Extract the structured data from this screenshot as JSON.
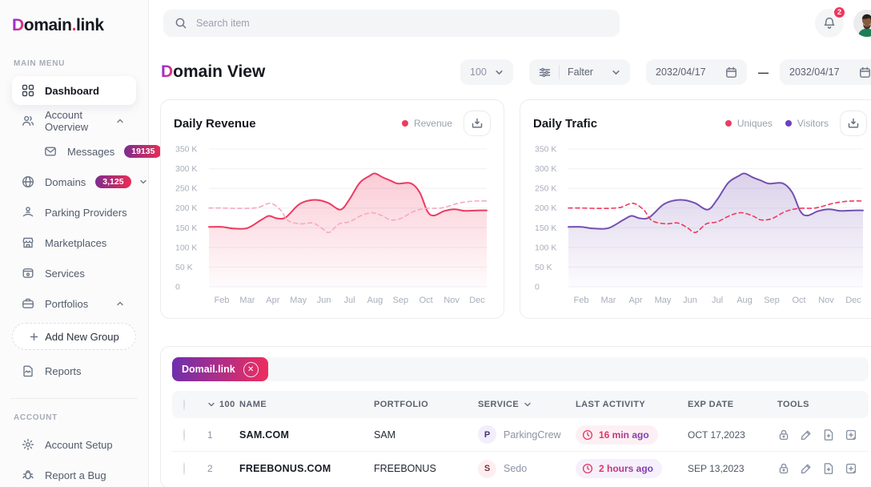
{
  "colors": {
    "accent_red": "#ee3a60",
    "accent_purple": "#7450b0",
    "dashed_pink": "#f6a9c0",
    "badge_gradient": [
      "#7b2d8e",
      "#ee2b52"
    ],
    "chip_gradient": [
      "#6d2fae",
      "#ef2d5e"
    ]
  },
  "sidebar": {
    "logo": {
      "prefix": "D",
      "mid": "omain",
      "dot": ".",
      "suffix": "link"
    },
    "main_menu_label": "MAIN MENU",
    "account_label": "ACCOUNT",
    "items": {
      "dashboard": "Dashboard",
      "account_overview": "Account Overview",
      "messages": "Messages",
      "messages_badge": "19135",
      "domains": "Domains",
      "domains_badge": "3,125",
      "parking_providers": "Parking Providers",
      "marketplaces": "Marketplaces",
      "services": "Services",
      "portfolios": "Portfolios",
      "add_new_group": "Add New Group",
      "reports": "Reports",
      "account_setup": "Account Setup",
      "report_a_bug": "Report a Bug"
    }
  },
  "topbar": {
    "search_placeholder": "Search item",
    "notification_count": "2"
  },
  "header": {
    "title_prefix": "D",
    "title_rest": "omain View",
    "page_size": "100",
    "filter_label": "Falter",
    "date_from": "2032/04/17",
    "date_to": "2032/04/17",
    "dash": "—"
  },
  "chart_data": [
    {
      "type": "line",
      "title": "Daily Revenue",
      "unit": "K",
      "ylim": [
        0,
        350
      ],
      "y_ticks": [
        "350 K",
        "300 K",
        "250 K",
        "200 K",
        "150 K",
        "100 K",
        "50 K",
        "0"
      ],
      "categories": [
        "Feb",
        "Mar",
        "Apr",
        "May",
        "Jun",
        "Jul",
        "Aug",
        "Sep",
        "Oct",
        "Nov",
        "Dec"
      ],
      "legend": [
        {
          "label": "Revenue",
          "color": "#ee3a60"
        }
      ],
      "series": [
        {
          "name": "Revenue",
          "style": "area",
          "color": "#ee3a60",
          "points": [
            [
              0,
              152
            ],
            [
              0.45,
              148
            ],
            [
              1,
              149
            ],
            [
              1.55,
              170
            ],
            [
              1.85,
              180
            ],
            [
              2.15,
              174
            ],
            [
              2.5,
              176
            ],
            [
              3,
              208
            ],
            [
              3.4,
              219
            ],
            [
              3.8,
              220
            ],
            [
              4.2,
              212
            ],
            [
              4.65,
              196
            ],
            [
              5,
              222
            ],
            [
              5.4,
              264
            ],
            [
              5.8,
              282
            ],
            [
              6,
              288
            ],
            [
              6.3,
              278
            ],
            [
              6.6,
              270
            ],
            [
              6.9,
              262
            ],
            [
              7.4,
              263
            ],
            [
              7.75,
              240
            ],
            [
              8.05,
              192
            ],
            [
              8.3,
              181
            ],
            [
              8.7,
              192
            ],
            [
              9.1,
              197
            ],
            [
              9.5,
              193
            ],
            [
              10,
              194
            ]
          ]
        },
        {
          "name": "Revenue trend",
          "style": "dashed",
          "color": "#f6a9c0",
          "points": [
            [
              0,
              200
            ],
            [
              0.7,
              199
            ],
            [
              1.4,
              201
            ],
            [
              1.9,
              212
            ],
            [
              2.3,
              195
            ],
            [
              2.6,
              168
            ],
            [
              3.1,
              160
            ],
            [
              3.55,
              162
            ],
            [
              3.9,
              150
            ],
            [
              4.2,
              138
            ],
            [
              4.6,
              160
            ],
            [
              5,
              165
            ],
            [
              5.5,
              182
            ],
            [
              5.9,
              188
            ],
            [
              6.3,
              180
            ],
            [
              6.6,
              170
            ],
            [
              7,
              173
            ],
            [
              7.5,
              191
            ],
            [
              8,
              199
            ],
            [
              8.6,
              200
            ],
            [
              9.2,
              211
            ],
            [
              9.6,
              216
            ],
            [
              10,
              218
            ]
          ]
        }
      ]
    },
    {
      "type": "line",
      "title": "Daily Trafic",
      "unit": "K",
      "ylim": [
        0,
        350
      ],
      "y_ticks": [
        "350 K",
        "300 K",
        "250 K",
        "200 K",
        "150 K",
        "100 K",
        "50 K",
        "0"
      ],
      "categories": [
        "Feb",
        "Mar",
        "Apr",
        "May",
        "Jun",
        "Jul",
        "Aug",
        "Sep",
        "Oct",
        "Nov",
        "Dec"
      ],
      "legend": [
        {
          "label": "Uniques",
          "color": "#ee3a60"
        },
        {
          "label": "Visitors",
          "color": "#6d3fc0"
        }
      ],
      "series": [
        {
          "name": "Visitors",
          "style": "area",
          "color": "#7450b0",
          "points": [
            [
              0,
              152
            ],
            [
              0.45,
              148
            ],
            [
              1,
              149
            ],
            [
              1.55,
              170
            ],
            [
              1.85,
              180
            ],
            [
              2.15,
              174
            ],
            [
              2.5,
              176
            ],
            [
              3,
              208
            ],
            [
              3.4,
              219
            ],
            [
              3.8,
              220
            ],
            [
              4.2,
              212
            ],
            [
              4.65,
              196
            ],
            [
              5,
              222
            ],
            [
              5.4,
              264
            ],
            [
              5.8,
              282
            ],
            [
              6,
              288
            ],
            [
              6.3,
              278
            ],
            [
              6.6,
              270
            ],
            [
              6.9,
              262
            ],
            [
              7.4,
              263
            ],
            [
              7.75,
              240
            ],
            [
              8.05,
              192
            ],
            [
              8.3,
              181
            ],
            [
              8.7,
              192
            ],
            [
              9.1,
              197
            ],
            [
              9.5,
              193
            ],
            [
              10,
              194
            ]
          ]
        },
        {
          "name": "Uniques",
          "style": "dashed",
          "color": "#ee3a60",
          "points": [
            [
              0,
              200
            ],
            [
              0.7,
              199
            ],
            [
              1.4,
              201
            ],
            [
              1.9,
              212
            ],
            [
              2.3,
              195
            ],
            [
              2.6,
              168
            ],
            [
              3.1,
              160
            ],
            [
              3.55,
              162
            ],
            [
              3.9,
              150
            ],
            [
              4.2,
              138
            ],
            [
              4.6,
              160
            ],
            [
              5,
              165
            ],
            [
              5.5,
              182
            ],
            [
              5.9,
              188
            ],
            [
              6.3,
              180
            ],
            [
              6.6,
              170
            ],
            [
              7,
              173
            ],
            [
              7.5,
              191
            ],
            [
              8,
              199
            ],
            [
              8.6,
              200
            ],
            [
              9.2,
              211
            ],
            [
              9.6,
              216
            ],
            [
              10,
              218
            ]
          ]
        }
      ]
    }
  ],
  "table": {
    "chip_label": "Domail.link",
    "page_size": "100",
    "columns": [
      "NAME",
      "PORTFOLIO",
      "SERVICE",
      "LAST ACTIVITY",
      "EXP DATE",
      "TOOLS"
    ],
    "rows": [
      {
        "num": "1",
        "name": "SAM.COM",
        "portfolio": "SAM",
        "service_initial": "P",
        "service": "ParkingCrew",
        "activity": "16 min ago",
        "exp": "OCT 17,2023"
      },
      {
        "num": "2",
        "name": "FREEBONUS.COM",
        "portfolio": "FREEBONUS",
        "service_initial": "S",
        "service": "Sedo",
        "activity": "2 hours ago",
        "exp": "SEP 13,2023"
      }
    ]
  }
}
